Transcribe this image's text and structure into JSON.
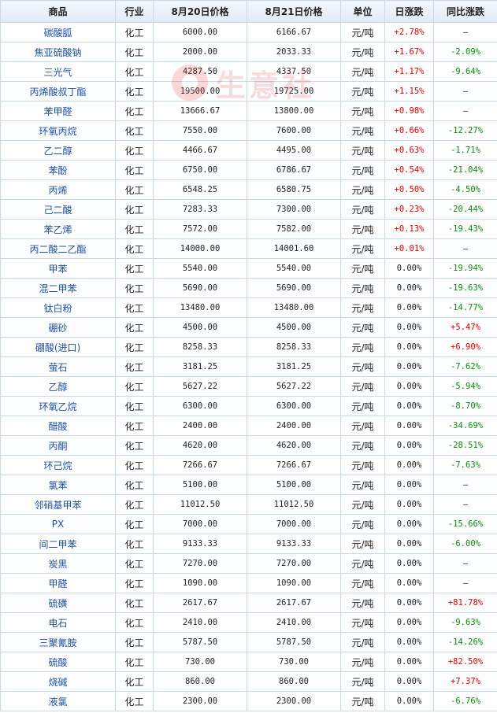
{
  "watermark": {
    "text": "生意社"
  },
  "columns": [
    "商品",
    "行业",
    "8月20日价格",
    "8月21日价格",
    "单位",
    "日涨跌",
    "同比涨跌"
  ],
  "rows": [
    {
      "name": "碳酸胍",
      "industry": "化工",
      "p1": "6000.00",
      "p2": "6166.67",
      "unit": "元/吨",
      "day": "+2.78%",
      "yoy": "—"
    },
    {
      "name": "焦亚硫酸钠",
      "industry": "化工",
      "p1": "2000.00",
      "p2": "2033.33",
      "unit": "元/吨",
      "day": "+1.67%",
      "yoy": "-2.09%"
    },
    {
      "name": "三光气",
      "industry": "化工",
      "p1": "4287.50",
      "p2": "4337.50",
      "unit": "元/吨",
      "day": "+1.17%",
      "yoy": "-9.64%"
    },
    {
      "name": "丙烯酸叔丁酯",
      "industry": "化工",
      "p1": "19500.00",
      "p2": "19725.00",
      "unit": "元/吨",
      "day": "+1.15%",
      "yoy": "—"
    },
    {
      "name": "苯甲醛",
      "industry": "化工",
      "p1": "13666.67",
      "p2": "13800.00",
      "unit": "元/吨",
      "day": "+0.98%",
      "yoy": "—"
    },
    {
      "name": "环氧丙烷",
      "industry": "化工",
      "p1": "7550.00",
      "p2": "7600.00",
      "unit": "元/吨",
      "day": "+0.66%",
      "yoy": "-12.27%"
    },
    {
      "name": "乙二醇",
      "industry": "化工",
      "p1": "4466.67",
      "p2": "4495.00",
      "unit": "元/吨",
      "day": "+0.63%",
      "yoy": "-1.71%"
    },
    {
      "name": "苯酚",
      "industry": "化工",
      "p1": "6750.00",
      "p2": "6786.67",
      "unit": "元/吨",
      "day": "+0.54%",
      "yoy": "-21.04%"
    },
    {
      "name": "丙烯",
      "industry": "化工",
      "p1": "6548.25",
      "p2": "6580.75",
      "unit": "元/吨",
      "day": "+0.50%",
      "yoy": "-4.50%"
    },
    {
      "name": "己二酸",
      "industry": "化工",
      "p1": "7283.33",
      "p2": "7300.00",
      "unit": "元/吨",
      "day": "+0.23%",
      "yoy": "-20.44%"
    },
    {
      "name": "苯乙烯",
      "industry": "化工",
      "p1": "7572.00",
      "p2": "7582.00",
      "unit": "元/吨",
      "day": "+0.13%",
      "yoy": "-19.43%"
    },
    {
      "name": "丙二酸二乙酯",
      "industry": "化工",
      "p1": "14000.00",
      "p2": "14001.60",
      "unit": "元/吨",
      "day": "+0.01%",
      "yoy": "—"
    },
    {
      "name": "甲苯",
      "industry": "化工",
      "p1": "5540.00",
      "p2": "5540.00",
      "unit": "元/吨",
      "day": "0.00%",
      "yoy": "-19.94%"
    },
    {
      "name": "混二甲苯",
      "industry": "化工",
      "p1": "5690.00",
      "p2": "5690.00",
      "unit": "元/吨",
      "day": "0.00%",
      "yoy": "-19.63%"
    },
    {
      "name": "钛白粉",
      "industry": "化工",
      "p1": "13480.00",
      "p2": "13480.00",
      "unit": "元/吨",
      "day": "0.00%",
      "yoy": "-14.77%"
    },
    {
      "name": "硼砂",
      "industry": "化工",
      "p1": "4500.00",
      "p2": "4500.00",
      "unit": "元/吨",
      "day": "0.00%",
      "yoy": "+5.47%"
    },
    {
      "name": "硼酸(进口)",
      "industry": "化工",
      "p1": "8258.33",
      "p2": "8258.33",
      "unit": "元/吨",
      "day": "0.00%",
      "yoy": "+6.90%"
    },
    {
      "name": "萤石",
      "industry": "化工",
      "p1": "3181.25",
      "p2": "3181.25",
      "unit": "元/吨",
      "day": "0.00%",
      "yoy": "-7.62%"
    },
    {
      "name": "乙醇",
      "industry": "化工",
      "p1": "5627.22",
      "p2": "5627.22",
      "unit": "元/吨",
      "day": "0.00%",
      "yoy": "-5.94%"
    },
    {
      "name": "环氧乙烷",
      "industry": "化工",
      "p1": "6300.00",
      "p2": "6300.00",
      "unit": "元/吨",
      "day": "0.00%",
      "yoy": "-8.70%"
    },
    {
      "name": "醋酸",
      "industry": "化工",
      "p1": "2400.00",
      "p2": "2400.00",
      "unit": "元/吨",
      "day": "0.00%",
      "yoy": "-34.69%"
    },
    {
      "name": "丙酮",
      "industry": "化工",
      "p1": "4620.00",
      "p2": "4620.00",
      "unit": "元/吨",
      "day": "0.00%",
      "yoy": "-28.51%"
    },
    {
      "name": "环己烷",
      "industry": "化工",
      "p1": "7266.67",
      "p2": "7266.67",
      "unit": "元/吨",
      "day": "0.00%",
      "yoy": "-7.63%"
    },
    {
      "name": "氯苯",
      "industry": "化工",
      "p1": "5100.00",
      "p2": "5100.00",
      "unit": "元/吨",
      "day": "0.00%",
      "yoy": "—"
    },
    {
      "name": "邻硝基甲苯",
      "industry": "化工",
      "p1": "11012.50",
      "p2": "11012.50",
      "unit": "元/吨",
      "day": "0.00%",
      "yoy": "—"
    },
    {
      "name": "PX",
      "industry": "化工",
      "p1": "7000.00",
      "p2": "7000.00",
      "unit": "元/吨",
      "day": "0.00%",
      "yoy": "-15.66%"
    },
    {
      "name": "间二甲苯",
      "industry": "化工",
      "p1": "9133.33",
      "p2": "9133.33",
      "unit": "元/吨",
      "day": "0.00%",
      "yoy": "-6.00%"
    },
    {
      "name": "炭黑",
      "industry": "化工",
      "p1": "7270.00",
      "p2": "7270.00",
      "unit": "元/吨",
      "day": "0.00%",
      "yoy": "—"
    },
    {
      "name": "甲醛",
      "industry": "化工",
      "p1": "1090.00",
      "p2": "1090.00",
      "unit": "元/吨",
      "day": "0.00%",
      "yoy": "—"
    },
    {
      "name": "硫磺",
      "industry": "化工",
      "p1": "2617.67",
      "p2": "2617.67",
      "unit": "元/吨",
      "day": "0.00%",
      "yoy": "+81.78%"
    },
    {
      "name": "电石",
      "industry": "化工",
      "p1": "2410.00",
      "p2": "2410.00",
      "unit": "元/吨",
      "day": "0.00%",
      "yoy": "-9.63%"
    },
    {
      "name": "三聚氰胺",
      "industry": "化工",
      "p1": "5787.50",
      "p2": "5787.50",
      "unit": "元/吨",
      "day": "0.00%",
      "yoy": "-14.26%"
    },
    {
      "name": "硫酸",
      "industry": "化工",
      "p1": "730.00",
      "p2": "730.00",
      "unit": "元/吨",
      "day": "0.00%",
      "yoy": "+82.50%"
    },
    {
      "name": "烧碱",
      "industry": "化工",
      "p1": "860.00",
      "p2": "860.00",
      "unit": "元/吨",
      "day": "0.00%",
      "yoy": "+7.37%"
    },
    {
      "name": "液氯",
      "industry": "化工",
      "p1": "2300.00",
      "p2": "2300.00",
      "unit": "元/吨",
      "day": "0.00%",
      "yoy": "-6.76%"
    }
  ],
  "colors": {
    "up": "#e00000",
    "down": "#118811",
    "link": "#1f4fa0",
    "border": "#c9d9ea"
  }
}
